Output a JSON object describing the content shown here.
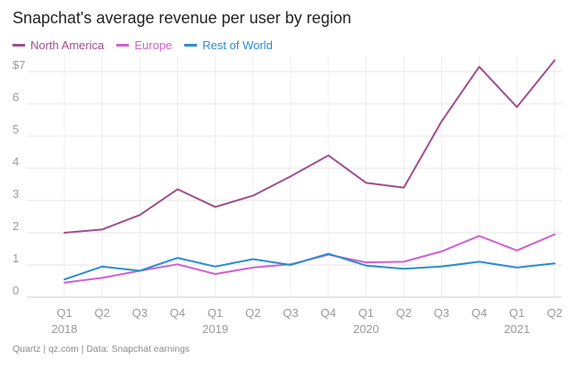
{
  "title": "Snapchat's average revenue per user by region",
  "footer": "Quartz | qz.com | Data: Snapchat earnings",
  "chart_data": {
    "type": "line",
    "title": "Snapchat's average revenue per user by region",
    "xlabel": "",
    "ylabel": "",
    "ylim": [
      0,
      7.5
    ],
    "grid": true,
    "legend_position": "top-left",
    "y_ticks": [
      0,
      1,
      2,
      3,
      4,
      5,
      6,
      7
    ],
    "y_tick_labels": [
      "0",
      "1",
      "2",
      "3",
      "4",
      "5",
      "6",
      "$7"
    ],
    "categories": [
      "Q1",
      "Q2",
      "Q3",
      "Q4",
      "Q1",
      "Q2",
      "Q3",
      "Q4",
      "Q1",
      "Q2",
      "Q3",
      "Q4",
      "Q1",
      "Q2"
    ],
    "year_labels": [
      {
        "label": "2018",
        "index": 0
      },
      {
        "label": "2019",
        "index": 4
      },
      {
        "label": "2020",
        "index": 8
      },
      {
        "label": "2021",
        "index": 12
      }
    ],
    "series": [
      {
        "name": "North America",
        "color": "#a04d8c",
        "values": [
          2.0,
          2.1,
          2.55,
          3.35,
          2.8,
          3.15,
          3.75,
          4.4,
          3.55,
          3.4,
          5.45,
          7.15,
          5.9,
          7.35
        ]
      },
      {
        "name": "Europe",
        "color": "#d05fd0",
        "values": [
          0.45,
          0.6,
          0.82,
          1.02,
          0.72,
          0.92,
          1.02,
          1.32,
          1.08,
          1.1,
          1.42,
          1.9,
          1.45,
          1.95
        ]
      },
      {
        "name": "Rest of World",
        "color": "#2b8cd0",
        "values": [
          0.55,
          0.95,
          0.82,
          1.22,
          0.95,
          1.18,
          1.0,
          1.35,
          0.98,
          0.88,
          0.95,
          1.1,
          0.92,
          1.05
        ]
      }
    ]
  }
}
